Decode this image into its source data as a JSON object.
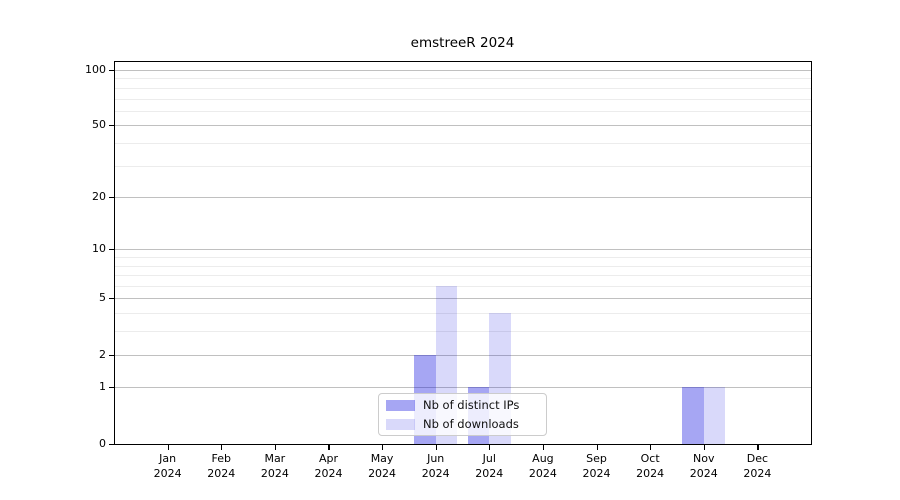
{
  "chart_data": {
    "type": "bar",
    "title": "emstreeR 2024",
    "x_year": "2024",
    "categories": [
      "Jan",
      "Feb",
      "Mar",
      "Apr",
      "May",
      "Jun",
      "Jul",
      "Aug",
      "Sep",
      "Oct",
      "Nov",
      "Dec"
    ],
    "series": [
      {
        "name": "Nb of distinct IPs",
        "color": "#0000dc",
        "alpha": 0.35,
        "values": [
          0,
          0,
          0,
          0,
          0,
          2,
          1,
          0,
          0,
          0,
          1,
          0
        ]
      },
      {
        "name": "Nb of downloads",
        "color": "#0000dc",
        "alpha": 0.15,
        "values": [
          0,
          0,
          0,
          0,
          0,
          6,
          4,
          0,
          0,
          0,
          1,
          0
        ]
      }
    ],
    "y_scale": "log1p",
    "y_ticks": [
      0,
      1,
      2,
      5,
      10,
      20,
      50,
      100
    ],
    "y_minor_grid": [
      3,
      4,
      6,
      7,
      8,
      9,
      30,
      40,
      60,
      70,
      80,
      90
    ],
    "ylim": [
      0,
      112
    ],
    "grid": "on",
    "legend_position": "lower center",
    "colors": {
      "major_grid": "#c0c0c0",
      "minor_grid": "#ececec",
      "axis": "#000000",
      "text": "#000000",
      "legend_border": "#cccccc"
    }
  }
}
